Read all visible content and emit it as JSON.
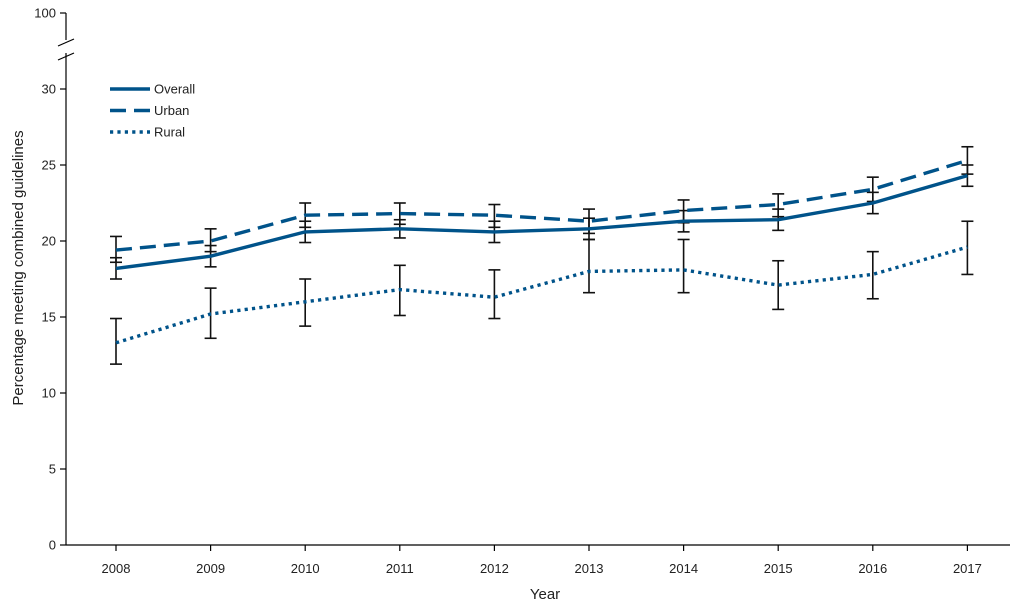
{
  "chart_data": {
    "type": "line",
    "title": "",
    "xlabel": "Year",
    "ylabel": "Percentage meeting combined guidelines",
    "ylim": [
      0,
      100
    ],
    "axis_break": {
      "from": 30,
      "to": 100
    },
    "y_ticks": [
      "0",
      "5",
      "10",
      "15",
      "20",
      "25",
      "30",
      "100"
    ],
    "categories": [
      "2008",
      "2009",
      "2010",
      "2011",
      "2012",
      "2013",
      "2014",
      "2015",
      "2016",
      "2017"
    ],
    "legend_position": "top-left",
    "series": [
      {
        "name": "Overall",
        "style": "solid",
        "color": "#00538a",
        "values": [
          18.2,
          19.0,
          20.6,
          20.8,
          20.6,
          20.8,
          21.3,
          21.4,
          22.5,
          24.3
        ],
        "error_low": [
          17.5,
          18.3,
          19.9,
          20.2,
          19.9,
          20.1,
          20.6,
          20.7,
          21.8,
          23.6
        ],
        "error_high": [
          18.9,
          19.7,
          21.3,
          21.4,
          21.3,
          21.5,
          22.0,
          22.1,
          23.2,
          25.0
        ]
      },
      {
        "name": "Urban",
        "style": "dashed",
        "color": "#00538a",
        "values": [
          19.4,
          20.0,
          21.7,
          21.8,
          21.7,
          21.3,
          22.0,
          22.4,
          23.4,
          25.3
        ],
        "error_low": [
          18.6,
          19.3,
          20.9,
          21.1,
          20.9,
          20.5,
          21.2,
          21.6,
          22.6,
          24.4
        ],
        "error_high": [
          20.3,
          20.8,
          22.5,
          22.5,
          22.4,
          22.1,
          22.7,
          23.1,
          24.2,
          26.2
        ]
      },
      {
        "name": "Rural",
        "style": "dotted",
        "color": "#00538a",
        "values": [
          13.3,
          15.2,
          16.0,
          16.8,
          16.3,
          18.0,
          18.1,
          17.1,
          17.8,
          19.6
        ],
        "error_low": [
          11.9,
          13.6,
          14.4,
          15.1,
          14.9,
          16.6,
          16.6,
          15.5,
          16.2,
          17.8
        ],
        "error_high": [
          14.9,
          16.9,
          17.5,
          18.4,
          18.1,
          20.1,
          20.1,
          18.7,
          19.3,
          21.3
        ]
      }
    ]
  }
}
